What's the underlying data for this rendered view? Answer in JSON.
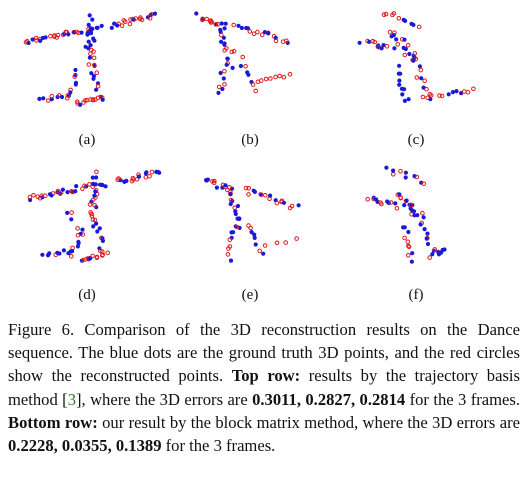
{
  "figure": {
    "panel_labels": [
      "(a)",
      "(b)",
      "(c)",
      "(d)",
      "(e)",
      "(f)"
    ],
    "colors": {
      "ground_truth_dot": "#1a1ad6",
      "reconstructed_circle": "#e0181a"
    }
  },
  "caption": {
    "lead": "Figure 6. Comparison of the 3D reconstruction results on the Dance sequence. The blue dots are the ground truth 3D points, and the red circles show the reconstructed points.",
    "top_row_label": "Top row:",
    "top_row_text_a": "results by the trajectory basis method [",
    "citation": "3",
    "top_row_text_b": "], where the 3D errors are",
    "top_row_errors": "0.3011, 0.2827, 0.2814",
    "top_row_tail": "for the 3 frames.",
    "bottom_row_label": "Bottom row:",
    "bottom_row_text": "our result by the block matrix method, where the 3D errors are",
    "bottom_row_errors": "0.2228, 0.0355, 0.1389",
    "bottom_row_tail": "for the 3 frames."
  }
}
